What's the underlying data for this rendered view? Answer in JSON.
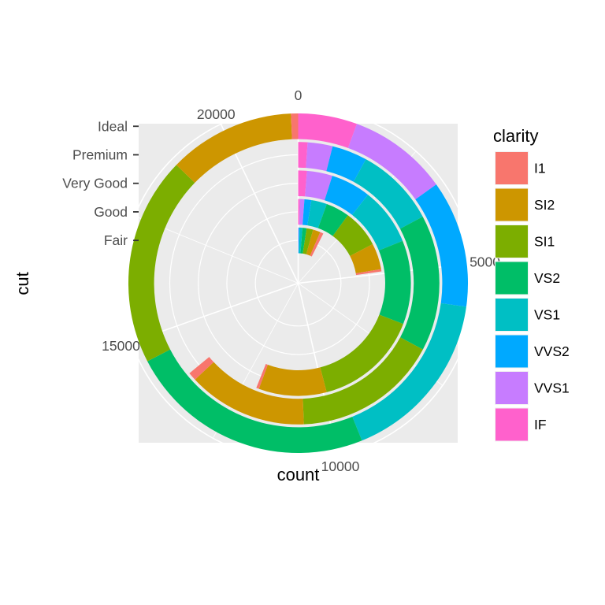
{
  "chart_data": {
    "type": "stacked-bar-polar",
    "theta_axis": {
      "label": "count",
      "breaks": [
        0,
        5000,
        10000,
        15000,
        20000
      ],
      "tick_labels": [
        "0",
        "5000",
        "10000",
        "15000",
        "20000"
      ],
      "max": 21551
    },
    "radius_axis": {
      "label": "cut",
      "categories": [
        "Fair",
        "Good",
        "Very Good",
        "Premium",
        "Ideal"
      ]
    },
    "legend": {
      "title": "clarity",
      "position": "right",
      "entries": [
        "I1",
        "SI2",
        "SI1",
        "VS2",
        "VS1",
        "VVS2",
        "VVS1",
        "IF"
      ]
    },
    "stack_order": [
      "IF",
      "VVS1",
      "VVS2",
      "VS1",
      "VS2",
      "SI1",
      "SI2",
      "I1"
    ],
    "series": [
      {
        "name": "I1",
        "values": [
          210,
          96,
          84,
          205,
          146
        ]
      },
      {
        "name": "SI2",
        "values": [
          466,
          1081,
          2100,
          2949,
          2598
        ]
      },
      {
        "name": "SI1",
        "values": [
          408,
          1560,
          3240,
          3575,
          4282
        ]
      },
      {
        "name": "VS2",
        "values": [
          261,
          978,
          2591,
          3357,
          5071
        ]
      },
      {
        "name": "VS1",
        "values": [
          170,
          648,
          1775,
          1989,
          3589
        ]
      },
      {
        "name": "VVS2",
        "values": [
          69,
          286,
          1235,
          870,
          2606
        ]
      },
      {
        "name": "VVS1",
        "values": [
          17,
          186,
          789,
          616,
          2047
        ]
      },
      {
        "name": "IF",
        "values": [
          9,
          71,
          268,
          230,
          1212
        ]
      }
    ],
    "colors": {
      "I1": "#F8766D",
      "SI2": "#CD9600",
      "SI1": "#7CAE00",
      "VS2": "#00BE67",
      "VS1": "#00BFC4",
      "VVS2": "#00A9FF",
      "VVS1": "#C77CFF",
      "IF": "#FF61CC"
    },
    "panel_background": "#EBEBEB",
    "grid_color": "#FFFFFF",
    "grid": true
  }
}
